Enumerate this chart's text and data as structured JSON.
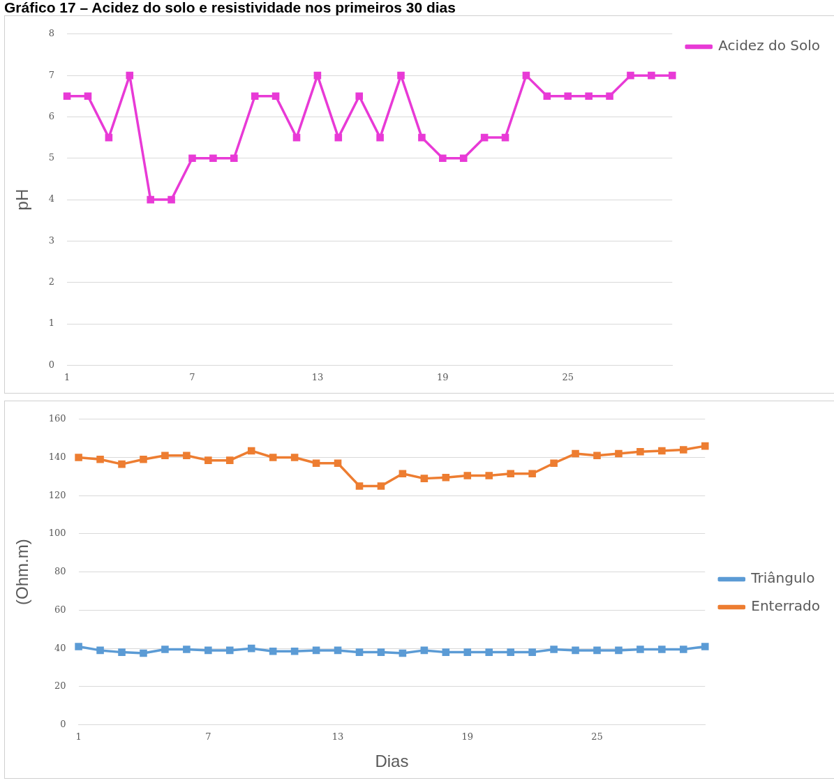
{
  "chart_data": [
    {
      "type": "line",
      "title": "Gráfico 17 – Acidez do solo e resistividade nos primeiros 30 dias",
      "ylabel": "pH",
      "categories": [
        "1",
        null,
        null,
        null,
        null,
        null,
        "7",
        null,
        null,
        null,
        null,
        null,
        "13",
        null,
        null,
        null,
        null,
        null,
        "19",
        null,
        null,
        null,
        null,
        null,
        "25",
        null,
        null,
        null,
        null,
        null
      ],
      "series": [
        {
          "name": "Acidez do Solo",
          "color": "#e83ad6",
          "values": [
            6.5,
            6.5,
            5.5,
            7,
            4,
            4,
            5,
            5,
            5,
            6.5,
            6.5,
            5.5,
            7,
            5.5,
            6.5,
            5.5,
            7,
            5.5,
            5,
            5,
            5.5,
            5.5,
            7,
            6.5,
            6.5,
            6.5,
            6.5,
            7,
            7,
            7
          ]
        }
      ],
      "ylim": [
        0,
        8
      ],
      "yticks": [
        0,
        1,
        2,
        3,
        4,
        5,
        6,
        7,
        8
      ],
      "grid": "y",
      "legend": "top right",
      "marker": "square",
      "line_style": "solid"
    },
    {
      "type": "line",
      "xlabel": "Dias",
      "ylabel": "(Ohm.m)",
      "categories": [
        "1",
        null,
        null,
        null,
        null,
        null,
        "7",
        null,
        null,
        null,
        null,
        null,
        "13",
        null,
        null,
        null,
        null,
        null,
        "19",
        null,
        null,
        null,
        null,
        null,
        "25",
        null,
        null,
        null,
        null,
        null
      ],
      "series": [
        {
          "name": "Triângulo",
          "color": "#5b9bd5",
          "values": [
            41,
            39,
            38,
            37.5,
            39.5,
            39.5,
            39,
            39,
            40,
            38.5,
            38.5,
            39,
            39,
            38,
            38,
            37.5,
            39,
            38,
            38,
            38,
            38,
            38,
            39.5,
            39,
            39,
            39,
            39.5,
            39.5,
            39.5,
            41
          ]
        },
        {
          "name": "Enterrado",
          "color": "#ed7d31",
          "values": [
            140,
            139,
            136.5,
            139,
            141,
            141,
            138.5,
            138.5,
            143.5,
            140,
            140,
            137,
            137,
            125,
            125,
            131.5,
            129,
            129.5,
            130.5,
            130.5,
            131.5,
            131.5,
            137,
            142,
            141,
            142,
            143,
            143.5,
            144,
            146
          ]
        }
      ],
      "ylim": [
        0,
        160
      ],
      "yticks": [
        0,
        20,
        40,
        60,
        80,
        100,
        120,
        140,
        160
      ],
      "grid": "y",
      "legend": "right",
      "marker": "square",
      "line_style": "solid"
    }
  ]
}
